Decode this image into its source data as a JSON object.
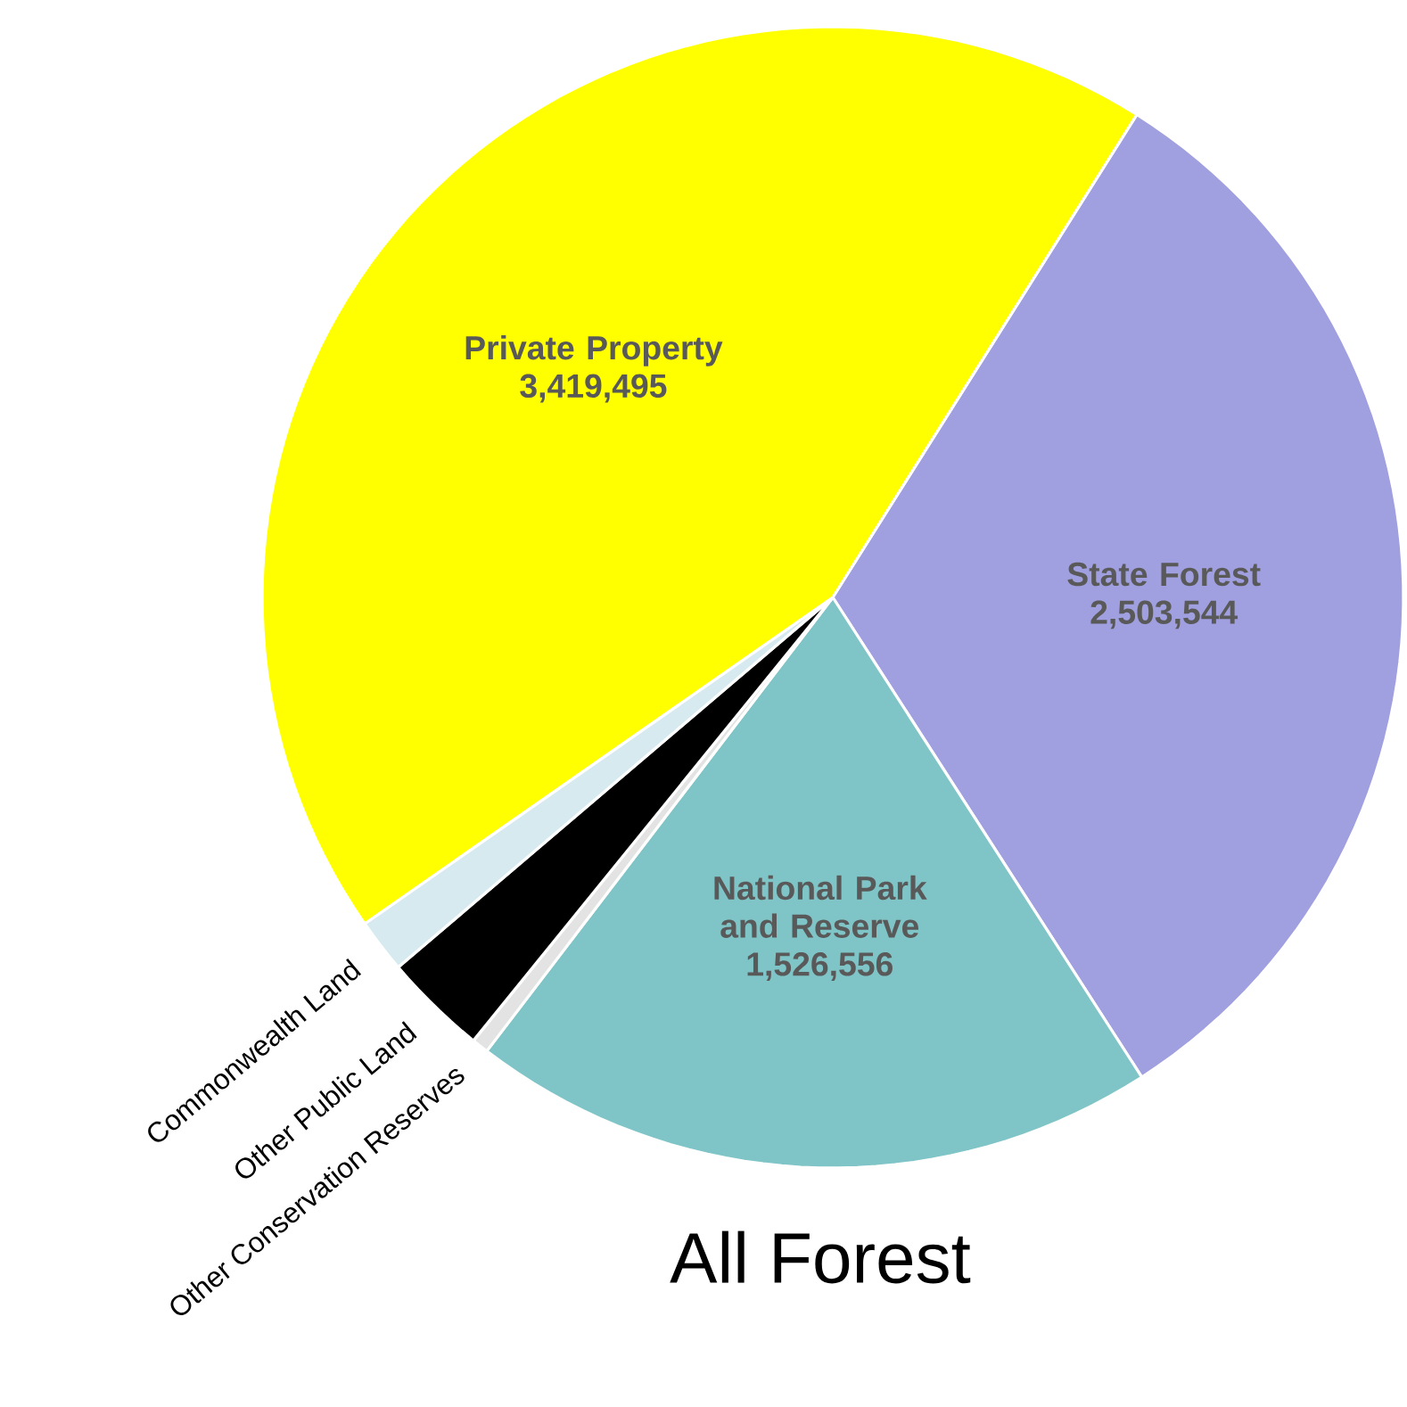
{
  "chart_data": {
    "type": "pie",
    "title": "All Forest",
    "categories": [
      "State Forest",
      "National Park and Reserve",
      "Other Conservation Reserves",
      "Other Public Land",
      "Commonwealth Land",
      "Private Property"
    ],
    "values": [
      2503544,
      1526556,
      37000,
      230000,
      120000,
      3419495
    ],
    "colors": [
      "#a09fdf",
      "#7fc4c6",
      "#e3e3e3",
      "#000000",
      "#d6eaf0",
      "#ffff00"
    ],
    "value_labels": [
      "2,503,544",
      "1,526,556",
      null,
      null,
      null,
      "3,419,495"
    ]
  }
}
